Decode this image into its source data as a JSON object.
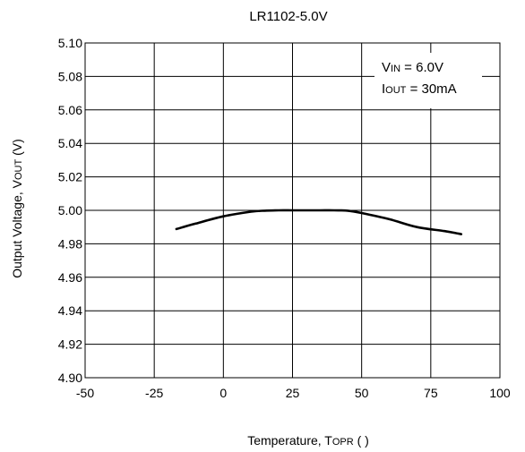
{
  "chart_data": {
    "type": "line",
    "title": "LR1102-5.0V",
    "xlabel": {
      "main": "Temperature, T",
      "sub": "OPR",
      "tail": " (   )"
    },
    "ylabel": {
      "main": "Output Voltage, V",
      "sub": "OUT",
      "tail": " (V)"
    },
    "xlim": [
      -50,
      100
    ],
    "ylim": [
      4.9,
      5.1
    ],
    "xticks": [
      -50,
      -25,
      0,
      25,
      50,
      75,
      100
    ],
    "xtick_labels": [
      "-50",
      "-25",
      "0",
      "25",
      "50",
      "75",
      "100"
    ],
    "yticks": [
      4.9,
      4.92,
      4.94,
      4.96,
      4.98,
      5.0,
      5.02,
      5.04,
      5.06,
      5.08,
      5.1
    ],
    "ytick_labels": [
      "4.90",
      "4.92",
      "4.94",
      "4.96",
      "4.98",
      "5.00",
      "5.02",
      "5.04",
      "5.06",
      "5.08",
      "5.10"
    ],
    "grid": true,
    "annotations": [
      {
        "main": "V",
        "sub": "IN",
        "tail": " = 6.0V"
      },
      {
        "main": "I",
        "sub": "OUT",
        "tail": " = 30mA"
      }
    ],
    "series": [
      {
        "x": [
          -17,
          -10,
          0,
          10,
          15,
          20,
          25,
          30,
          35,
          40,
          45,
          50,
          60,
          70,
          80,
          86
        ],
        "y": [
          4.9888,
          4.9921,
          4.9964,
          4.9992,
          4.9998,
          5.0,
          5.0,
          5.0,
          5.0,
          5.0,
          4.9998,
          4.9984,
          4.9947,
          4.99,
          4.9876,
          4.9858
        ]
      }
    ]
  }
}
